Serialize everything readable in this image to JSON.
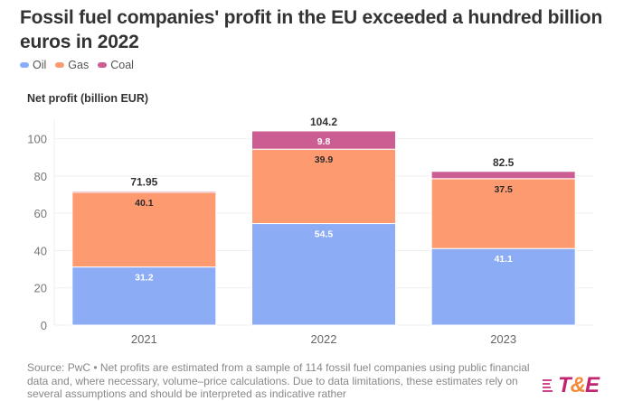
{
  "title": "Fossil fuel companies' profit in the EU exceeded a hundred billion euros in 2022",
  "legend": [
    {
      "label": "Oil",
      "color": "#8cadf5"
    },
    {
      "label": "Gas",
      "color": "#fe9a70"
    },
    {
      "label": "Coal",
      "color": "#cc5d92"
    }
  ],
  "footer": "Source: PwC • Net profits are estimated from a sample of 114 fossil fuel companies using public financial data and, where necessary, volume–price calculations. Due to data limitations, these estimates rely on several assumptions and should be interpreted as indicative rather",
  "logo": {
    "prefix": "T",
    "amp": "&",
    "suffix": "E"
  },
  "chart_data": {
    "type": "bar",
    "stacked": true,
    "title": "Fossil fuel companies' profit in the EU exceeded a hundred billion euros in 2022",
    "xlabel": "",
    "ylabel": "Net profit (billion EUR)",
    "categories": [
      "2021",
      "2022",
      "2023"
    ],
    "series": [
      {
        "name": "Oil",
        "color": "#8cadf5",
        "values": [
          31.2,
          54.5,
          41.1
        ],
        "labels": [
          "31.2",
          "54.5",
          "41.1"
        ],
        "label_color": "#ffffff"
      },
      {
        "name": "Gas",
        "color": "#fe9a70",
        "values": [
          40.1,
          39.9,
          37.5
        ],
        "labels": [
          "40.1",
          "39.9",
          "37.5"
        ],
        "label_color": "#2b2b2b"
      },
      {
        "name": "Coal",
        "color": "#cc5d92",
        "values": [
          0.65,
          9.8,
          3.9
        ],
        "labels": [
          "",
          "9.8",
          ""
        ],
        "label_color": "#ffffff"
      }
    ],
    "totals": [
      "71.95",
      "104.2",
      "82.5"
    ],
    "ylim": [
      0,
      110
    ],
    "yticks": [
      0,
      20,
      40,
      60,
      80,
      100
    ],
    "grid": true,
    "legend_position": "top-left"
  }
}
